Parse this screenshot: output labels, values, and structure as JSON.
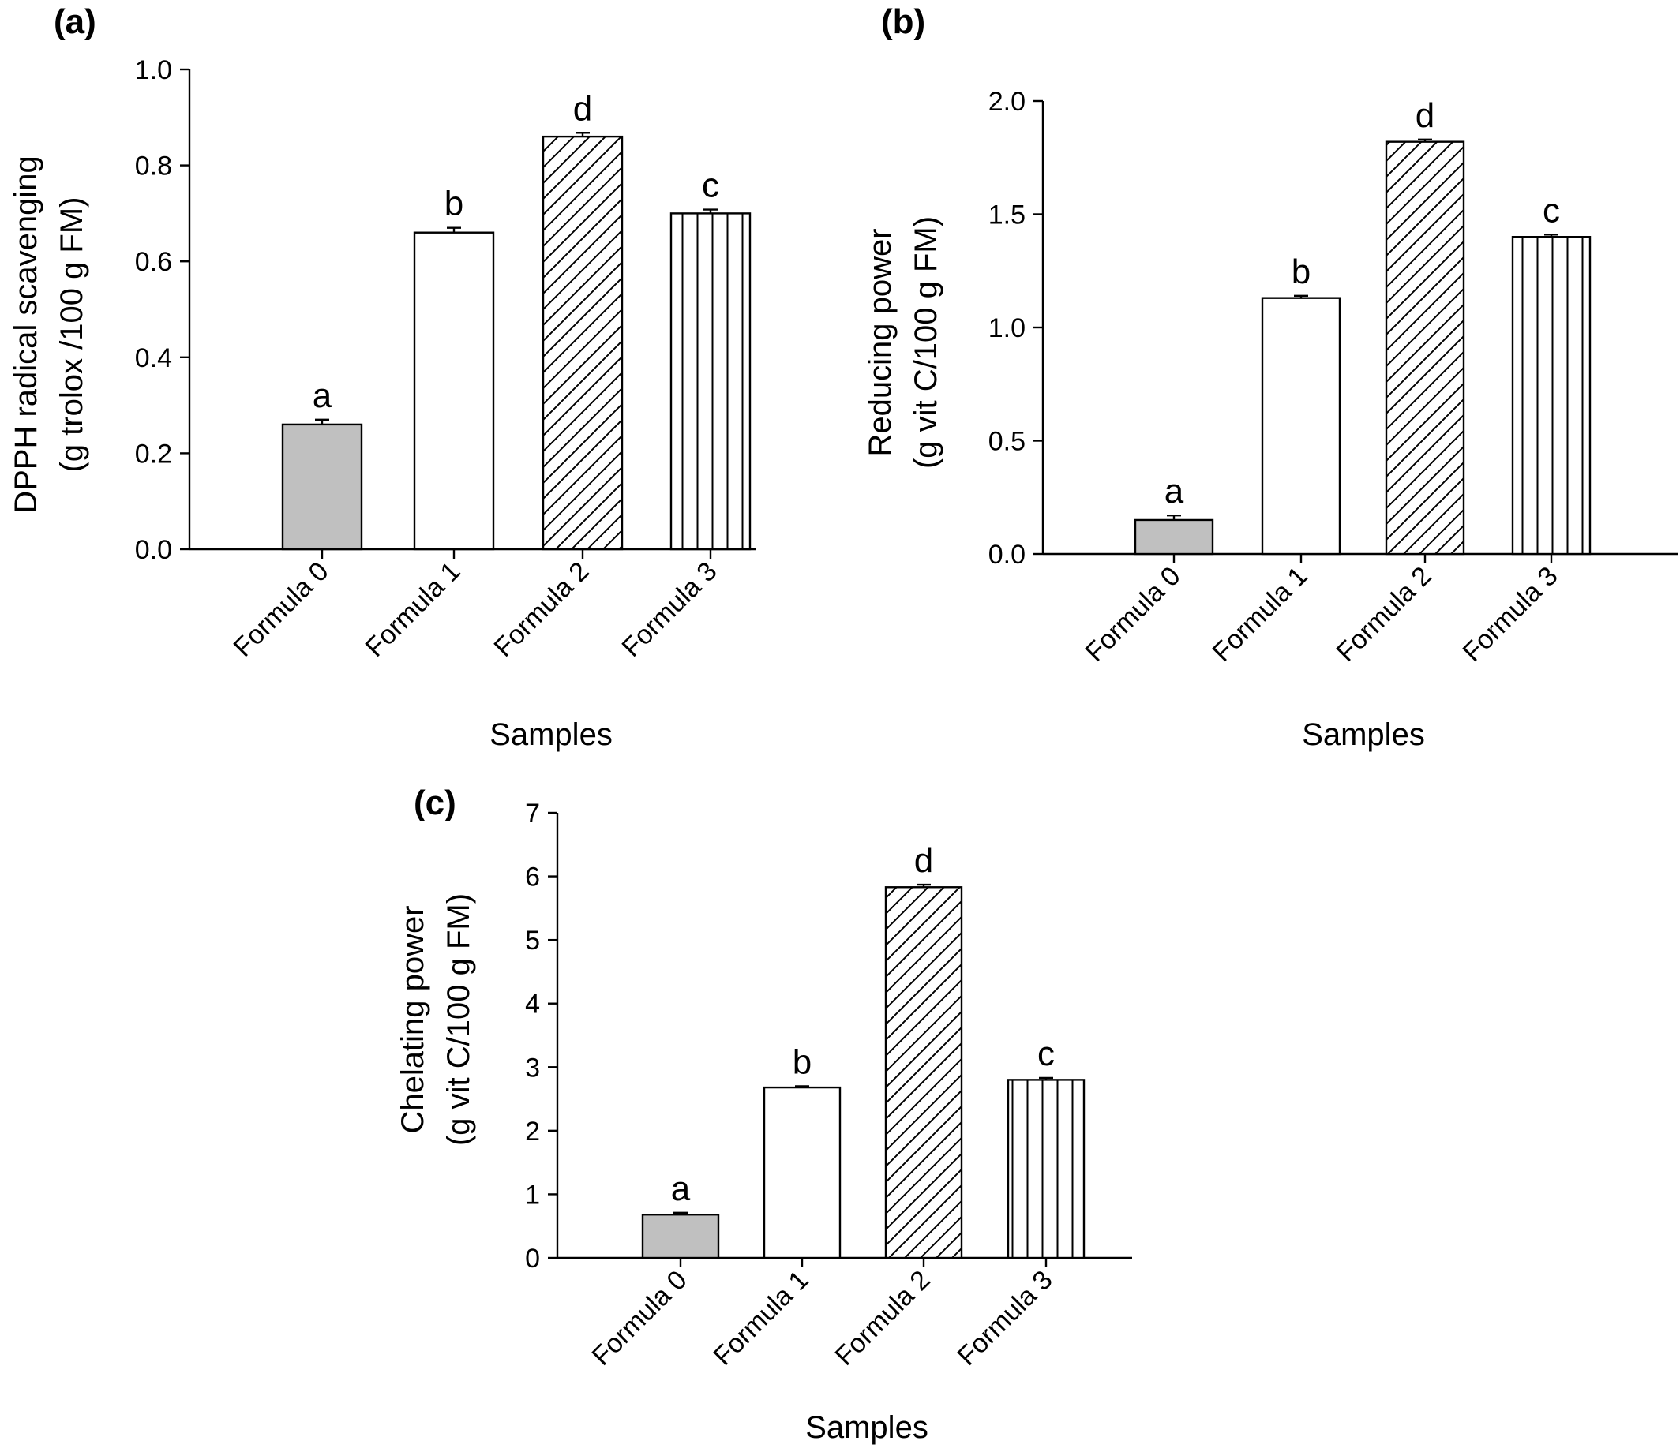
{
  "figure": {
    "panel_labels": [
      "(a)",
      "(b)",
      "(c)"
    ]
  },
  "colors": {
    "formula0_fill": "#c0c0c0",
    "plain_fill": "#ffffff",
    "stroke": "#000000"
  },
  "chart_data": [
    {
      "type": "bar",
      "panel": "(a)",
      "categories": [
        "Formula 0",
        "Formula 1",
        "Formula 2",
        "Formula 3"
      ],
      "values": [
        0.26,
        0.66,
        0.86,
        0.7
      ],
      "errors": [
        0.01,
        0.01,
        0.008,
        0.008
      ],
      "significance": [
        "a",
        "b",
        "d",
        "c"
      ],
      "patterns": [
        "solid-gray",
        "none",
        "diagonal-hatch",
        "vertical-lines"
      ],
      "xlabel": "Samples",
      "ylabel_lines": [
        "DPPH radical scavenging",
        "(g trolox /100 g FM)"
      ],
      "ylim": [
        0,
        1.0
      ],
      "yticks": [
        "0.0",
        "0.2",
        "0.4",
        "0.6",
        "0.8",
        "1.0"
      ],
      "grid": false,
      "legend": "none"
    },
    {
      "type": "bar",
      "panel": "(b)",
      "categories": [
        "Formula 0",
        "Formula 1",
        "Formula 2",
        "Formula 3"
      ],
      "values": [
        0.15,
        1.13,
        1.82,
        1.4
      ],
      "errors": [
        0.02,
        0.01,
        0.01,
        0.01
      ],
      "significance": [
        "a",
        "b",
        "d",
        "c"
      ],
      "patterns": [
        "solid-gray",
        "none",
        "diagonal-hatch",
        "vertical-lines"
      ],
      "xlabel": "Samples",
      "ylabel_lines": [
        "Reducing power",
        "(g vit C/100 g FM)"
      ],
      "ylim": [
        0,
        2.0
      ],
      "yticks": [
        "0.0",
        "0.5",
        "1.0",
        "1.5",
        "2.0"
      ],
      "grid": false,
      "legend": "none"
    },
    {
      "type": "bar",
      "panel": "(c)",
      "categories": [
        "Formula 0",
        "Formula 1",
        "Formula 2",
        "Formula 3"
      ],
      "values": [
        0.68,
        2.68,
        5.83,
        2.8
      ],
      "errors": [
        0.03,
        0.02,
        0.04,
        0.03
      ],
      "significance": [
        "a",
        "b",
        "d",
        "c"
      ],
      "patterns": [
        "solid-gray",
        "none",
        "diagonal-hatch",
        "vertical-lines"
      ],
      "xlabel": "Samples",
      "ylabel_lines": [
        "Chelating power",
        "(g vit C/100 g FM)"
      ],
      "ylim": [
        0,
        7
      ],
      "yticks": [
        "0",
        "1",
        "2",
        "3",
        "4",
        "5",
        "6",
        "7"
      ],
      "grid": false,
      "legend": "none"
    }
  ]
}
